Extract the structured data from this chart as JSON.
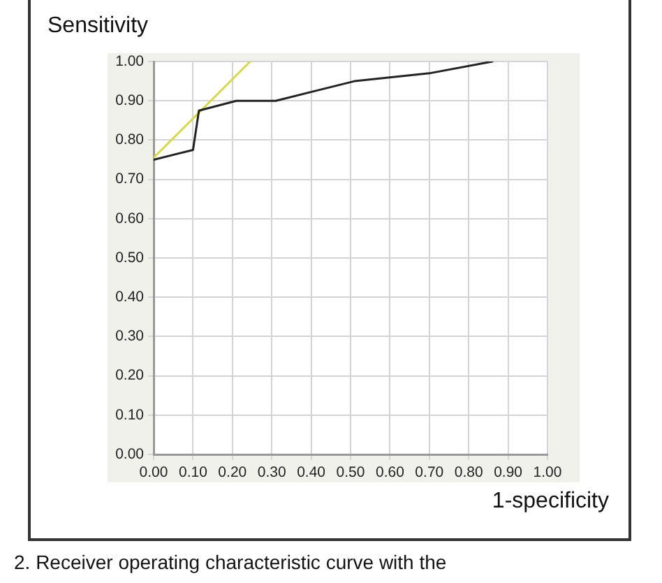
{
  "chart_data": {
    "type": "line",
    "xlabel": "1-specificity",
    "ylabel": "Sensitivity",
    "xlim": [
      0,
      1
    ],
    "xticks": [
      {
        "value": 0,
        "label": "0.00"
      },
      {
        "value": 0.1,
        "label": "0.10"
      },
      {
        "value": 0.2,
        "label": "0.20"
      },
      {
        "value": 0.3,
        "label": "0.30"
      },
      {
        "value": 0.4,
        "label": "0.40"
      },
      {
        "value": 0.5,
        "label": "0.50"
      },
      {
        "value": 0.6,
        "label": "0.60"
      },
      {
        "value": 0.7,
        "label": "0.70"
      },
      {
        "value": 0.8,
        "label": "0.80"
      },
      {
        "value": 0.9,
        "label": "0.90"
      },
      {
        "value": 1,
        "label": "1.00"
      }
    ],
    "ylim": [
      0,
      1
    ],
    "yticks": [
      {
        "value": 0,
        "label": "0.00"
      },
      {
        "value": 0.1,
        "label": "0.10"
      },
      {
        "value": 0.2,
        "label": "0.20"
      },
      {
        "value": 0.3,
        "label": "0.30"
      },
      {
        "value": 0.4,
        "label": "0.40"
      },
      {
        "value": 0.5,
        "label": "0.50"
      },
      {
        "value": 0.6,
        "label": "0.60"
      },
      {
        "value": 0.7,
        "label": "0.70"
      },
      {
        "value": 0.8,
        "label": "0.80"
      },
      {
        "value": 0.9,
        "label": "0.90"
      },
      {
        "value": 1,
        "label": "1.00"
      }
    ],
    "series": [
      {
        "color": "#222222",
        "x": [
          0,
          0.1,
          0.115,
          0.21,
          0.31,
          0.41,
          0.51,
          0.7,
          0.86
        ],
        "values": [
          0.75,
          0.775,
          0.875,
          0.9,
          0.9,
          0.925,
          0.95,
          0.97,
          1.0
        ]
      },
      {
        "color": "#d8d84a",
        "x": [
          0,
          0.245
        ],
        "values": [
          0.755,
          1.0
        ]
      }
    ],
    "grid": true,
    "legend": false,
    "marker": "none",
    "line_style": "solid",
    "annotations": [
      "2. Receiver operating characteristic curve with the"
    ]
  }
}
